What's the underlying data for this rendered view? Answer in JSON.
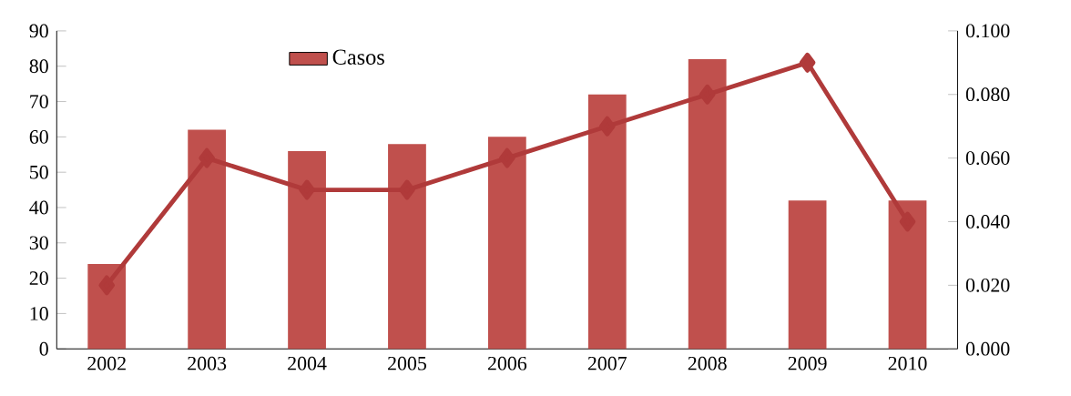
{
  "chart_data": {
    "type": "bar",
    "categories": [
      "2002",
      "2003",
      "2004",
      "2005",
      "2006",
      "2007",
      "2008",
      "2009",
      "2010"
    ],
    "series": [
      {
        "name": "Casos",
        "color": "#c0504d",
        "values": [
          24,
          62,
          56,
          58,
          60,
          72,
          82,
          42,
          42
        ]
      },
      {
        "type": "line",
        "axis": "y2",
        "color": "#b03a3a",
        "marker": "diamond",
        "values": [
          0.02,
          0.06,
          0.05,
          0.05,
          0.06,
          0.07,
          0.08,
          0.09,
          0.04
        ]
      }
    ],
    "ylim": [
      0,
      90
    ],
    "yticks": [
      0,
      10,
      20,
      30,
      40,
      50,
      60,
      70,
      80,
      90
    ],
    "y2lim": [
      0,
      0.1
    ],
    "y2ticks": [
      {
        "value": 0,
        "label": "0.000"
      },
      {
        "value": 0.02,
        "label": "0.020"
      },
      {
        "value": 0.04,
        "label": "0.040"
      },
      {
        "value": 0.06,
        "label": "0.060"
      },
      {
        "value": 0.08,
        "label": "0.080"
      },
      {
        "value": 0.1,
        "label": "0.100"
      }
    ],
    "legend": "top left",
    "grid": false
  }
}
